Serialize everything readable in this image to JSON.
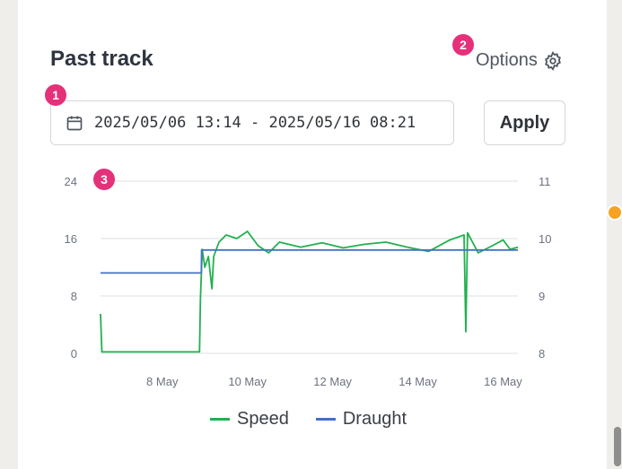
{
  "header": {
    "title": "Past track",
    "options_label": "Options"
  },
  "date_range": {
    "value": "2025/05/06 13:14 - 2025/05/16 08:21"
  },
  "apply_label": "Apply",
  "badges": [
    "1",
    "2",
    "3"
  ],
  "icons": {
    "calendar": "calendar-icon",
    "gear": "gear-icon"
  },
  "colors": {
    "speed": "#22b04f",
    "draught": "#4470c4",
    "badge": "#e5307a"
  },
  "chart_data": {
    "type": "line",
    "x_ticks": [
      "8 May",
      "10 May",
      "12 May",
      "14 May",
      "16 May"
    ],
    "y_left_ticks": [
      "0",
      "8",
      "16",
      "24"
    ],
    "y_right_ticks": [
      "8",
      "9",
      "10",
      "11"
    ],
    "y_left_range": [
      0,
      24
    ],
    "y_right_range": [
      8,
      11
    ],
    "x_range_days": [
      "2025-05-06 13:14",
      "2025-05-16 08:21"
    ],
    "grid": true,
    "legend_position": "bottom",
    "series": [
      {
        "name": "Speed",
        "axis": "left",
        "points": [
          [
            "2025-05-06 13:14",
            5.5
          ],
          [
            "2025-05-06 14:00",
            0.2
          ],
          [
            "2025-05-07 12:00",
            0.2
          ],
          [
            "2025-05-08 15:00",
            0.2
          ],
          [
            "2025-05-08 21:00",
            0.2
          ],
          [
            "2025-05-08 21:30",
            7.5
          ],
          [
            "2025-05-08 22:30",
            14.5
          ],
          [
            "2025-05-09 00:00",
            12
          ],
          [
            "2025-05-09 02:00",
            13.5
          ],
          [
            "2025-05-09 04:00",
            9
          ],
          [
            "2025-05-09 05:00",
            13.5
          ],
          [
            "2025-05-09 08:00",
            15.5
          ],
          [
            "2025-05-09 12:00",
            16.5
          ],
          [
            "2025-05-09 18:00",
            16
          ],
          [
            "2025-05-10 00:00",
            17
          ],
          [
            "2025-05-10 06:00",
            15
          ],
          [
            "2025-05-10 12:00",
            14
          ],
          [
            "2025-05-10 18:00",
            15.5
          ],
          [
            "2025-05-11 06:00",
            14.8
          ],
          [
            "2025-05-11 18:00",
            15.4
          ],
          [
            "2025-05-12 06:00",
            14.7
          ],
          [
            "2025-05-12 18:00",
            15.2
          ],
          [
            "2025-05-13 06:00",
            15.5
          ],
          [
            "2025-05-13 18:00",
            14.8
          ],
          [
            "2025-05-14 06:00",
            14.2
          ],
          [
            "2025-05-14 18:00",
            15.8
          ],
          [
            "2025-05-15 02:00",
            16.5
          ],
          [
            "2025-05-15 03:00",
            3
          ],
          [
            "2025-05-15 04:00",
            16.8
          ],
          [
            "2025-05-15 10:00",
            14
          ],
          [
            "2025-05-15 18:00",
            15
          ],
          [
            "2025-05-16 00:00",
            15.8
          ],
          [
            "2025-05-16 04:00",
            14.5
          ],
          [
            "2025-05-16 08:21",
            14.8
          ]
        ]
      },
      {
        "name": "Draught",
        "axis": "right",
        "points": [
          [
            "2025-05-06 13:14",
            9.4
          ],
          [
            "2025-05-08 22:00",
            9.4
          ],
          [
            "2025-05-08 22:10",
            9.8
          ],
          [
            "2025-05-16 08:21",
            9.8
          ]
        ]
      }
    ]
  }
}
